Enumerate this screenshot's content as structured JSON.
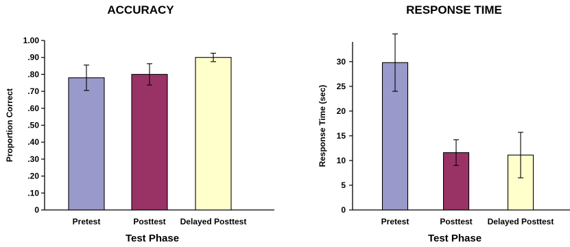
{
  "chart_data": [
    {
      "type": "bar",
      "title": "ACCURACY",
      "xlabel": "Test Phase",
      "ylabel": "Proportion Correct",
      "categories": [
        "Pretest",
        "Posttest",
        "Delayed Posttest"
      ],
      "values": [
        0.78,
        0.8,
        0.9
      ],
      "errors": [
        0.075,
        0.063,
        0.025
      ],
      "colors": [
        "#9999cc",
        "#993366",
        "#ffffcc"
      ],
      "ylim": [
        0,
        1.0
      ],
      "yticks": [
        0,
        0.1,
        0.2,
        0.3,
        0.4,
        0.5,
        0.6,
        0.7,
        0.8,
        0.9,
        1.0
      ],
      "yticklabels": [
        "0",
        ".10",
        ".20",
        ".30",
        ".40",
        ".50",
        ".60",
        ".70",
        ".80",
        ".90",
        "1.00"
      ],
      "grid": false
    },
    {
      "type": "bar",
      "title": "RESPONSE TIME",
      "xlabel": "Test Phase",
      "ylabel": "Response Time (sec)",
      "categories": [
        "Pretest",
        "Posttest",
        "Delayed Posttest"
      ],
      "values": [
        29.8,
        11.6,
        11.1
      ],
      "errors": [
        5.8,
        2.6,
        4.6
      ],
      "colors": [
        "#9999cc",
        "#993366",
        "#ffffcc"
      ],
      "ylim": [
        0,
        34
      ],
      "yticks": [
        0,
        5,
        10,
        15,
        20,
        25,
        30
      ],
      "yticklabels": [
        "0",
        "5",
        "10",
        "15",
        "20",
        "25",
        "30"
      ],
      "grid": false
    }
  ]
}
